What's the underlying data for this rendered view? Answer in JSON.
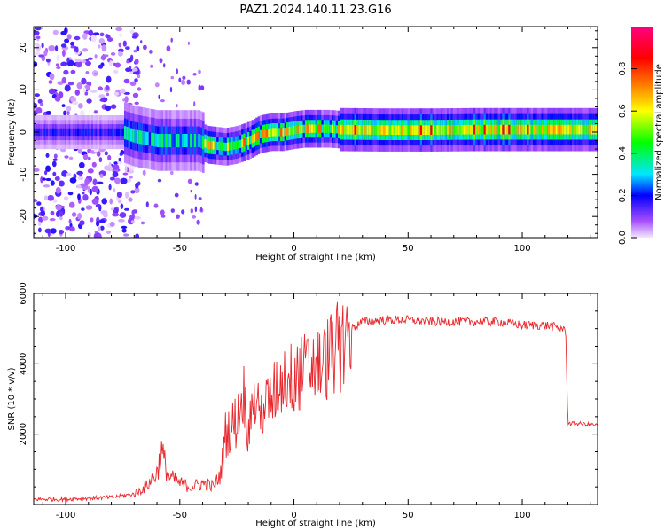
{
  "title": "PAZ1.2024.140.11.23.G16",
  "chart_data": [
    {
      "type": "heatmap",
      "xlabel": "Height of straight line (km)",
      "ylabel": "Frequency (Hz)",
      "xlim": [
        -114,
        133
      ],
      "ylim": [
        -25,
        25
      ],
      "xticks": [
        -100,
        -50,
        0,
        50,
        100
      ],
      "yticks": [
        -20,
        -10,
        0,
        10,
        20
      ],
      "colorbar": {
        "label": "Normalized spectral amplitude",
        "range": [
          0,
          1
        ],
        "ticks": [
          0.0,
          0.2,
          0.4,
          0.6,
          0.8
        ],
        "colors": [
          "#f3e8ff",
          "#7b00ff",
          "#0000ff",
          "#00e6ff",
          "#00ff00",
          "#ffff00",
          "#ff8000",
          "#ff0000",
          "#ff0080"
        ]
      },
      "signal_trace": {
        "x": [
          -114,
          -75,
          -70,
          -60,
          -50,
          -42,
          -38,
          -30,
          -25,
          -20,
          -15,
          -10,
          -5,
          0,
          5,
          10,
          15,
          20,
          40,
          60,
          80,
          100,
          120,
          133
        ],
        "y": [
          0,
          0,
          -1,
          -2,
          -2,
          -2,
          -3,
          -3.5,
          -3,
          -2,
          -0.5,
          0,
          0,
          0.5,
          0.8,
          0.8,
          0.8,
          0.6,
          0.5,
          0.5,
          0.6,
          0.6,
          0.6,
          0.6
        ]
      }
    },
    {
      "type": "line",
      "xlabel": "Height of straight line (km)",
      "ylabel": "SNR (10 * v/v)",
      "xlim": [
        -114,
        133
      ],
      "ylim": [
        0,
        6000
      ],
      "xticks": [
        -100,
        -50,
        0,
        50,
        100
      ],
      "yticks": [
        2000,
        4000,
        6000
      ],
      "line_color": "#e8272d",
      "series": [
        {
          "x": [
            -114,
            -100,
            -90,
            -80,
            -70,
            -65,
            -60,
            -58,
            -55,
            -50,
            -45,
            -40,
            -35,
            -32,
            -30,
            -25,
            -22,
            -20,
            -18,
            -15,
            -10,
            -5,
            0,
            5,
            10,
            12,
            15,
            20,
            25,
            30,
            40,
            50,
            60,
            70,
            80,
            90,
            100,
            110,
            118,
            119,
            120,
            125,
            133
          ],
          "y": [
            150,
            150,
            180,
            200,
            300,
            500,
            900,
            1500,
            800,
            600,
            500,
            600,
            500,
            900,
            2000,
            2400,
            3200,
            2000,
            3000,
            2600,
            3000,
            3600,
            3600,
            3800,
            4000,
            3900,
            4200,
            4500,
            5000,
            5200,
            5250,
            5250,
            5200,
            5200,
            5200,
            5200,
            5100,
            5100,
            5000,
            5000,
            2300,
            2300,
            2250
          ]
        }
      ]
    }
  ]
}
